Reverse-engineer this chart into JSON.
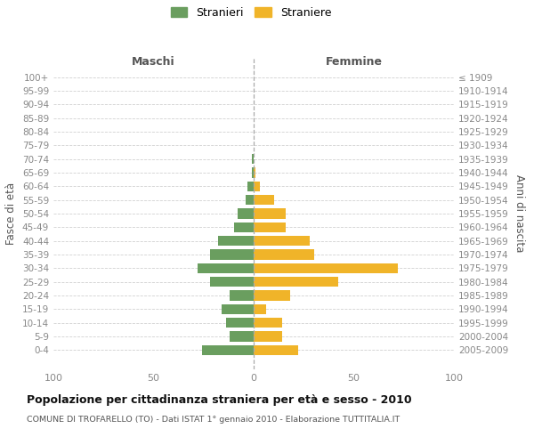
{
  "age_groups": [
    "100+",
    "95-99",
    "90-94",
    "85-89",
    "80-84",
    "75-79",
    "70-74",
    "65-69",
    "60-64",
    "55-59",
    "50-54",
    "45-49",
    "40-44",
    "35-39",
    "30-34",
    "25-29",
    "20-24",
    "15-19",
    "10-14",
    "5-9",
    "0-4"
  ],
  "birth_years": [
    "≤ 1909",
    "1910-1914",
    "1915-1919",
    "1920-1924",
    "1925-1929",
    "1930-1934",
    "1935-1939",
    "1940-1944",
    "1945-1949",
    "1950-1954",
    "1955-1959",
    "1960-1964",
    "1965-1969",
    "1970-1974",
    "1975-1979",
    "1980-1984",
    "1985-1989",
    "1990-1994",
    "1995-1999",
    "2000-2004",
    "2005-2009"
  ],
  "maschi": [
    0,
    0,
    0,
    0,
    0,
    0,
    1,
    1,
    3,
    4,
    8,
    10,
    18,
    22,
    28,
    22,
    12,
    16,
    14,
    12,
    26
  ],
  "femmine": [
    0,
    0,
    0,
    0,
    0,
    0,
    0,
    1,
    3,
    10,
    16,
    16,
    28,
    30,
    72,
    42,
    18,
    6,
    14,
    14,
    22
  ],
  "maschi_color": "#6a9e5f",
  "femmine_color": "#f0b429",
  "title": "Popolazione per cittadinanza straniera per età e sesso - 2010",
  "subtitle": "COMUNE DI TROFARELLO (TO) - Dati ISTAT 1° gennaio 2010 - Elaborazione TUTTITALIA.IT",
  "left_label": "Maschi",
  "right_label": "Femmine",
  "ylabel_left": "Fasce di età",
  "ylabel_right": "Anni di nascita",
  "legend_maschi": "Stranieri",
  "legend_femmine": "Straniere",
  "xlim": 100,
  "background_color": "#ffffff",
  "grid_color": "#cccccc"
}
